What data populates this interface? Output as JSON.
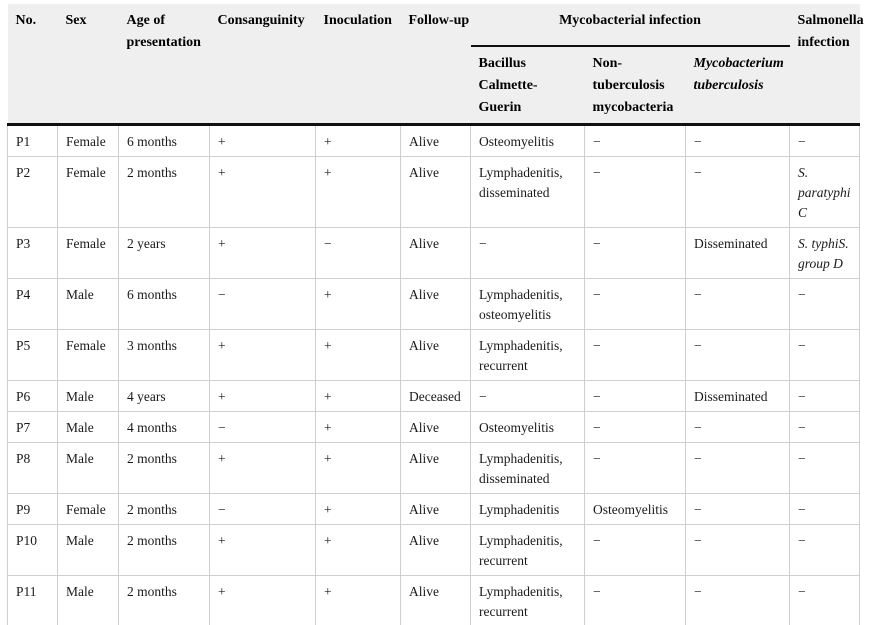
{
  "table": {
    "header": {
      "top": [
        "No.",
        "Sex",
        "Age of presentation",
        "Consanguinity",
        "Inoculation",
        "Follow-up"
      ],
      "group": "Mycobacterial infection",
      "sub": [
        "Bacillus Calmette-Guerin",
        "Non-tuberculosis mycobacteria",
        "Mycobacterium tuberculosis"
      ],
      "salmonella": "Salmonella infection"
    },
    "rows": [
      {
        "no": "P1",
        "sex": "Female",
        "age": "6 months",
        "consanguinity": "+",
        "inoculation": "+",
        "followup": "Alive",
        "bcg": "Osteomyelitis",
        "ntm": "−",
        "mtb": "−",
        "salmonella": "−",
        "salmonella_italic": false
      },
      {
        "no": "P2",
        "sex": "Female",
        "age": "2 months",
        "consanguinity": "+",
        "inoculation": "+",
        "followup": "Alive",
        "bcg": "Lymphadenitis, disseminated",
        "ntm": "−",
        "mtb": "−",
        "salmonella": "S. paratyphi C",
        "salmonella_italic": true
      },
      {
        "no": "P3",
        "sex": "Female",
        "age": "2 years",
        "consanguinity": "+",
        "inoculation": "−",
        "followup": "Alive",
        "bcg": "−",
        "ntm": "−",
        "mtb": "Disseminated",
        "salmonella": "S. typhiS. group D",
        "salmonella_italic": true
      },
      {
        "no": "P4",
        "sex": "Male",
        "age": "6 months",
        "consanguinity": "−",
        "inoculation": "+",
        "followup": "Alive",
        "bcg": "Lymphadenitis, osteomyelitis",
        "ntm": "−",
        "mtb": "−",
        "salmonella": "−",
        "salmonella_italic": false
      },
      {
        "no": "P5",
        "sex": "Female",
        "age": "3 months",
        "consanguinity": "+",
        "inoculation": "+",
        "followup": "Alive",
        "bcg": "Lymphadenitis, recurrent",
        "ntm": "−",
        "mtb": "−",
        "salmonella": "−",
        "salmonella_italic": false
      },
      {
        "no": "P6",
        "sex": "Male",
        "age": "4 years",
        "consanguinity": "+",
        "inoculation": "+",
        "followup": "Deceased",
        "bcg": "−",
        "ntm": "−",
        "mtb": "Disseminated",
        "salmonella": "−",
        "salmonella_italic": false
      },
      {
        "no": "P7",
        "sex": "Male",
        "age": "4 months",
        "consanguinity": "−",
        "inoculation": "+",
        "followup": "Alive",
        "bcg": "Osteomyelitis",
        "ntm": "−",
        "mtb": "−",
        "salmonella": "−",
        "salmonella_italic": false
      },
      {
        "no": "P8",
        "sex": "Male",
        "age": "2 months",
        "consanguinity": "+",
        "inoculation": "+",
        "followup": "Alive",
        "bcg": "Lymphadenitis, disseminated",
        "ntm": "−",
        "mtb": "−",
        "salmonella": "−",
        "salmonella_italic": false
      },
      {
        "no": "P9",
        "sex": "Female",
        "age": "2 months",
        "consanguinity": "−",
        "inoculation": "+",
        "followup": "Alive",
        "bcg": "Lymphadenitis",
        "ntm": "Osteomyelitis",
        "mtb": "−",
        "salmonella": "−",
        "salmonella_italic": false
      },
      {
        "no": "P10",
        "sex": "Male",
        "age": "2 months",
        "consanguinity": "+",
        "inoculation": "+",
        "followup": "Alive",
        "bcg": "Lymphadenitis, recurrent",
        "ntm": "−",
        "mtb": "−",
        "salmonella": "−",
        "salmonella_italic": false
      },
      {
        "no": "P11",
        "sex": "Male",
        "age": "2 months",
        "consanguinity": "+",
        "inoculation": "+",
        "followup": "Alive",
        "bcg": "Lymphadenitis, recurrent",
        "ntm": "−",
        "mtb": "−",
        "salmonella": "−",
        "salmonella_italic": false
      }
    ]
  },
  "colors": {
    "header_bg": "#efefef",
    "grid_line": "#cfcfcf",
    "heavy_rule": "#101010",
    "text": "#1a1a1a"
  }
}
